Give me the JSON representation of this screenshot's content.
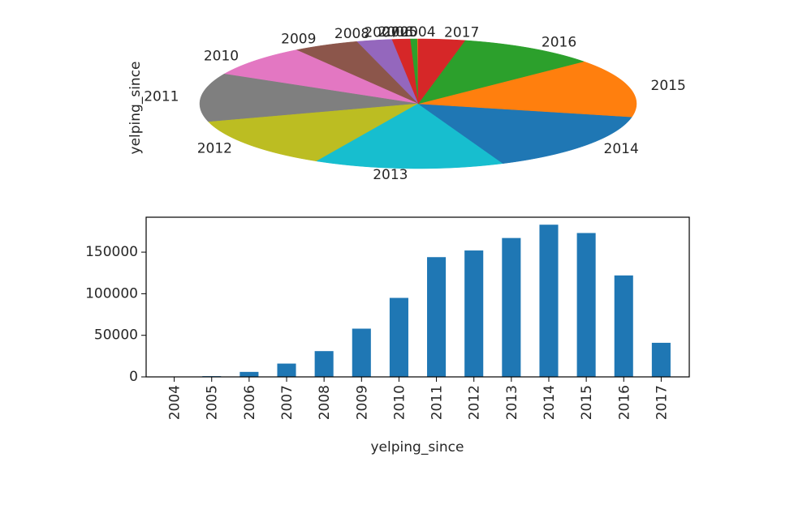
{
  "chart_data": [
    {
      "type": "pie",
      "ylabel": "yelping_since",
      "labels": [
        "2004",
        "2005",
        "2006",
        "2007",
        "2008",
        "2009",
        "2010",
        "2011",
        "2012",
        "2013",
        "2014",
        "2015",
        "2016",
        "2017"
      ],
      "values": [
        80,
        900,
        6000,
        16000,
        31000,
        58000,
        95000,
        144000,
        152000,
        167000,
        183000,
        173000,
        122000,
        41000
      ],
      "colors": [
        "#1f77b4",
        "#ff7f0e",
        "#2ca02c",
        "#d62728",
        "#9467bd",
        "#8c564b",
        "#e377c2",
        "#7f7f7f",
        "#bcbd22",
        "#17becf",
        "#1f77b4",
        "#ff7f0e",
        "#2ca02c",
        "#d62728"
      ]
    },
    {
      "type": "bar",
      "xlabel": "yelping_since",
      "ylabel": "",
      "categories": [
        "2004",
        "2005",
        "2006",
        "2007",
        "2008",
        "2009",
        "2010",
        "2011",
        "2012",
        "2013",
        "2014",
        "2015",
        "2016",
        "2017"
      ],
      "values": [
        80,
        900,
        6000,
        16000,
        31000,
        58000,
        95000,
        144000,
        152000,
        167000,
        183000,
        173000,
        122000,
        41000
      ],
      "ylim": [
        0,
        192000
      ],
      "yticks": [
        0,
        50000,
        100000,
        150000
      ],
      "ytick_labels": [
        "0",
        "50000",
        "100000",
        "150000"
      ],
      "bar_color": "#1f77b4",
      "grid": false
    }
  ]
}
